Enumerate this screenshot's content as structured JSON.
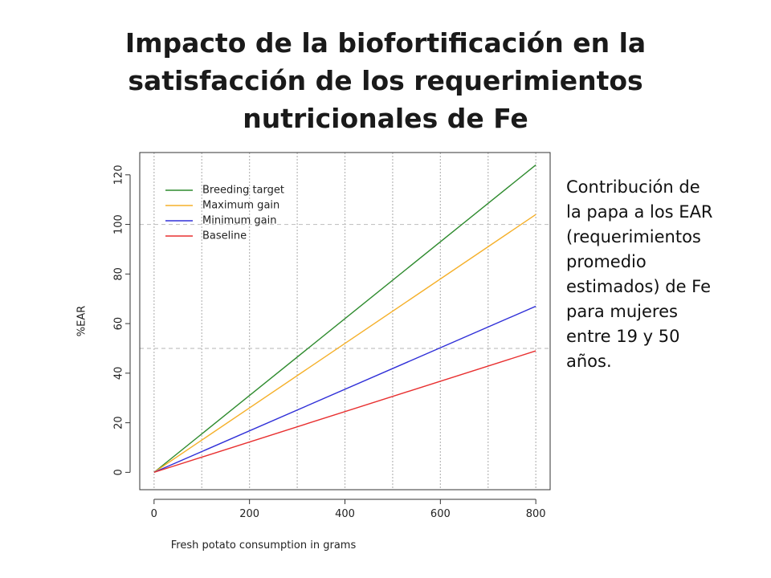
{
  "slide": {
    "title_lines": [
      "Impacto de la biofortificación en la",
      "satisfacción de los requerimientos",
      "nutricionales de Fe"
    ],
    "note_lines": [
      "Contribución de",
      "la papa a los EAR",
      "(requerimientos",
      "promedio",
      "estimados) de Fe",
      "para mujeres",
      "entre 19 y 50",
      "años."
    ]
  },
  "chart_data": {
    "type": "line",
    "title": "",
    "xlabel": "Fresh potato consumption in grams",
    "ylabel": "%EAR",
    "xlim": [
      -30,
      830
    ],
    "ylim": [
      -7,
      129
    ],
    "xticks": [
      0,
      200,
      400,
      600,
      800
    ],
    "yticks": [
      0,
      20,
      40,
      60,
      80,
      100,
      120
    ],
    "vgrid": [
      0,
      100,
      200,
      300,
      400,
      500,
      600,
      700,
      800
    ],
    "hgrid": [
      50,
      100
    ],
    "grid": true,
    "legend_position": "top-left",
    "series": [
      {
        "name": "Breeding target",
        "color": "#2e8b2e",
        "x": [
          0,
          800
        ],
        "y": [
          0,
          124
        ]
      },
      {
        "name": "Maximum gain",
        "color": "#f5b02a",
        "x": [
          0,
          800
        ],
        "y": [
          0,
          104
        ]
      },
      {
        "name": "Minimum gain",
        "color": "#3030d8",
        "x": [
          0,
          800
        ],
        "y": [
          0,
          67
        ]
      },
      {
        "name": "Baseline",
        "color": "#e83030",
        "x": [
          0,
          800
        ],
        "y": [
          0,
          49
        ]
      }
    ]
  }
}
